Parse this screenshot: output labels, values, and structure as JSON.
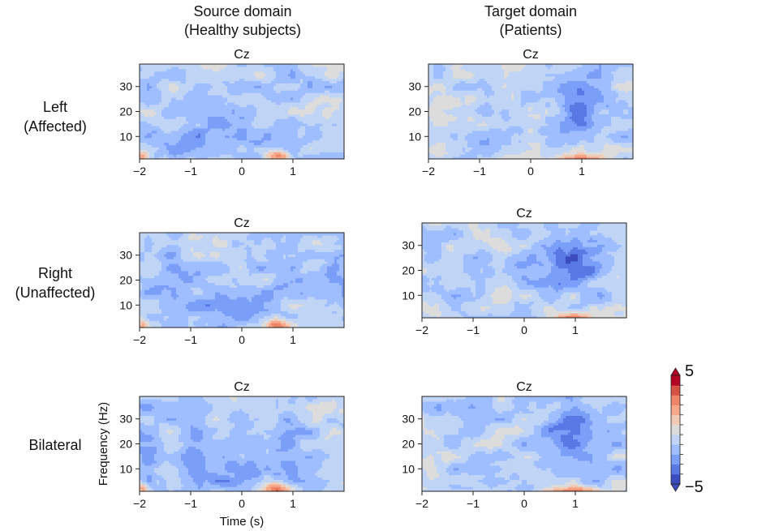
{
  "columns": [
    {
      "line1": "Source domain",
      "line2": "(Healthy subjects)"
    },
    {
      "line1": "Target domain",
      "line2": "(Patients)"
    }
  ],
  "rows": [
    {
      "line1": "Left",
      "line2": "(Affected)"
    },
    {
      "line1": "Right",
      "line2": "(Unaffected)"
    },
    {
      "line1": "Bilateral",
      "line2": ""
    }
  ],
  "colorbar": {
    "max_label": "5",
    "min_label": "−5",
    "colors": [
      "#3a4cc0",
      "#5a78e4",
      "#7b9ff9",
      "#9ebeff",
      "#c0d4f5",
      "#dddcdc",
      "#f2cbb7",
      "#f7a889",
      "#ee8468",
      "#d65244",
      "#b40426"
    ]
  },
  "chart_data": [
    {
      "type": "heatmap",
      "title": "Cz",
      "row": "Left (Affected)",
      "domain": "Source domain (Healthy subjects)",
      "xlabel": "",
      "ylabel": "",
      "xticks": [
        "−2",
        "−1",
        "0",
        "1"
      ],
      "yticks": [
        "10",
        "20",
        "30"
      ],
      "xlim": [
        -2,
        2
      ],
      "ylim": [
        1,
        39
      ],
      "zlim": [
        -5,
        5
      ],
      "pattern": "source"
    },
    {
      "type": "heatmap",
      "title": "Cz",
      "row": "Left (Affected)",
      "domain": "Target domain (Patients)",
      "xlabel": "",
      "ylabel": "",
      "xticks": [
        "−2",
        "−1",
        "0",
        "1"
      ],
      "yticks": [
        "10",
        "20",
        "30"
      ],
      "xlim": [
        -2,
        2
      ],
      "ylim": [
        1,
        39
      ],
      "zlim": [
        -5,
        5
      ],
      "pattern": "target"
    },
    {
      "type": "heatmap",
      "title": "Cz",
      "row": "Right (Unaffected)",
      "domain": "Source domain (Healthy subjects)",
      "xlabel": "",
      "ylabel": "",
      "xticks": [
        "−2",
        "−1",
        "0",
        "1"
      ],
      "yticks": [
        "10",
        "20",
        "30"
      ],
      "xlim": [
        -2,
        2
      ],
      "ylim": [
        1,
        39
      ],
      "zlim": [
        -5,
        5
      ],
      "pattern": "source"
    },
    {
      "type": "heatmap",
      "title": "Cz",
      "row": "Right (Unaffected)",
      "domain": "Target domain (Patients)",
      "xlabel": "",
      "ylabel": "",
      "xticks": [
        "−2",
        "−1",
        "0",
        "1"
      ],
      "yticks": [
        "10",
        "20",
        "30"
      ],
      "xlim": [
        -2,
        2
      ],
      "ylim": [
        1,
        39
      ],
      "zlim": [
        -5,
        5
      ],
      "pattern": "target"
    },
    {
      "type": "heatmap",
      "title": "Cz",
      "row": "Bilateral",
      "domain": "Source domain (Healthy subjects)",
      "xlabel": "Time (s)",
      "ylabel": "Frequency (Hz)",
      "xticks": [
        "−2",
        "−1",
        "0",
        "1"
      ],
      "yticks": [
        "10",
        "20",
        "30"
      ],
      "xlim": [
        -2,
        2
      ],
      "ylim": [
        1,
        39
      ],
      "zlim": [
        -5,
        5
      ],
      "pattern": "source"
    },
    {
      "type": "heatmap",
      "title": "Cz",
      "row": "Bilateral",
      "domain": "Target domain (Patients)",
      "xlabel": "",
      "ylabel": "",
      "xticks": [
        "−2",
        "−1",
        "0",
        "1"
      ],
      "yticks": [
        "10",
        "20",
        "30"
      ],
      "xlim": [
        -2,
        2
      ],
      "ylim": [
        1,
        39
      ],
      "zlim": [
        -5,
        5
      ],
      "pattern": "target"
    }
  ]
}
